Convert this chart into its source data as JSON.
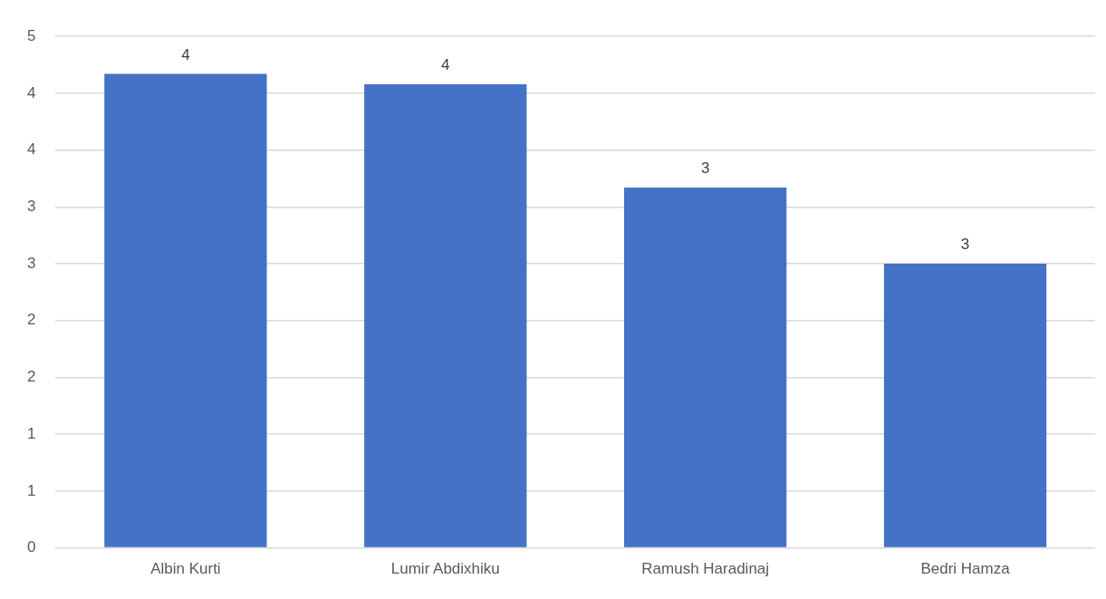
{
  "chart_data": {
    "type": "bar",
    "categories": [
      "Albin Kurti",
      "Lumir Abdixhiku",
      "Ramush Haradinaj",
      "Bedri Hamza"
    ],
    "values": [
      4.17,
      4.08,
      3.17,
      2.5
    ],
    "value_labels": [
      "4",
      "4",
      "3",
      "3"
    ],
    "color": "#4472c4",
    "ylim": [
      0,
      4.5
    ],
    "yticks": [
      0,
      {
        "value": 0.5,
        "label": "1"
      },
      1,
      {
        "value": 1.5,
        "label": "2"
      },
      2,
      {
        "value": 2.5,
        "label": "3"
      },
      3,
      {
        "value": 3.5,
        "label": "4"
      },
      4,
      {
        "value": 4.5,
        "label": "5"
      }
    ],
    "grid": "y"
  }
}
